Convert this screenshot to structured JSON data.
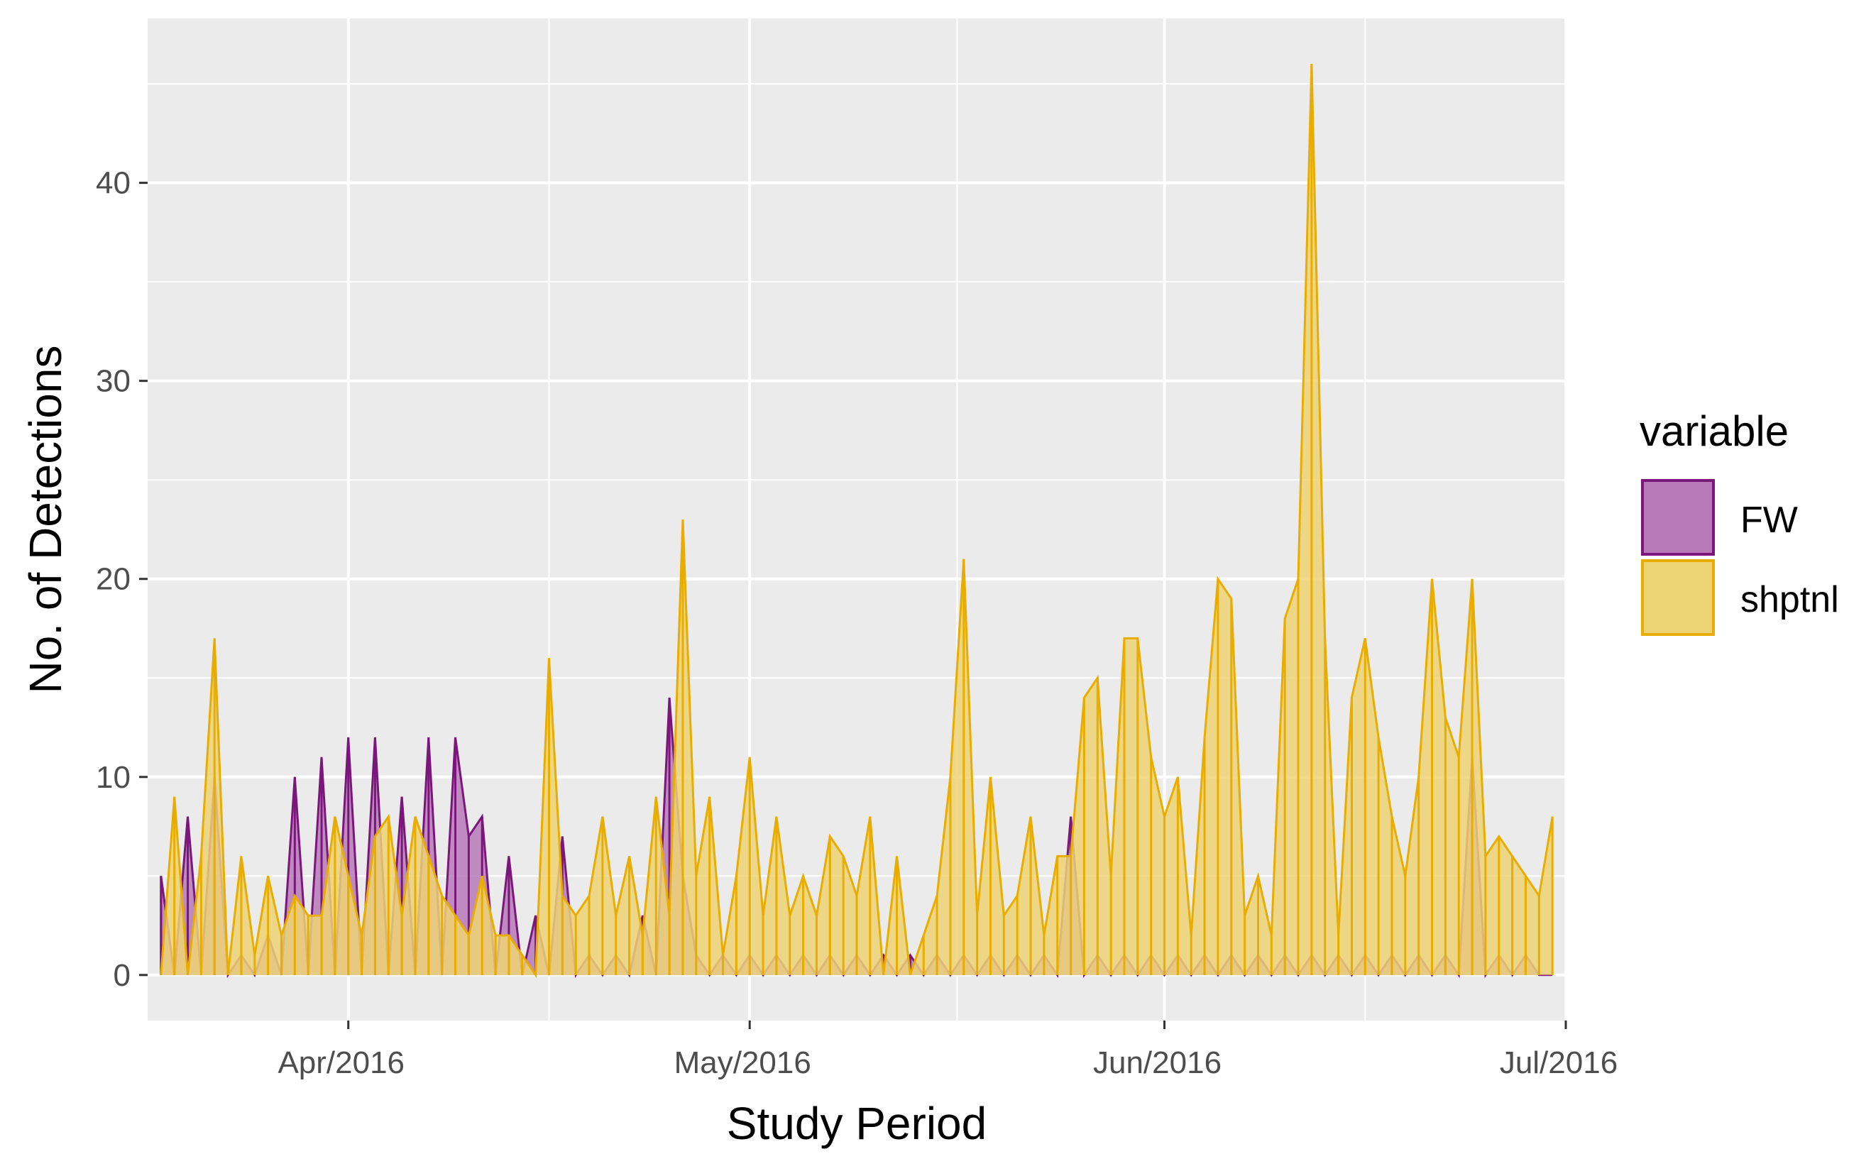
{
  "chart_data": {
    "type": "area",
    "title": "",
    "xlabel": "Study Period",
    "ylabel": "No. of Detections",
    "x_type": "date",
    "xlim": [
      "2016-03-17",
      "2016-07-01"
    ],
    "ylim": [
      -2.3,
      48.3
    ],
    "x_ticks": [
      {
        "date": "2016-04-01",
        "label": "Apr/2016"
      },
      {
        "date": "2016-05-01",
        "label": "May/2016"
      },
      {
        "date": "2016-06-01",
        "label": "Jun/2016"
      },
      {
        "date": "2016-07-01",
        "label": "Jul/2016"
      }
    ],
    "y_ticks": [
      0,
      10,
      20,
      30,
      40
    ],
    "grid": true,
    "legend": {
      "title": "variable",
      "position": "right"
    },
    "series": [
      {
        "name": "FW",
        "fill": "#B779B7",
        "stroke": "#7B177B",
        "points": [
          [
            "2016-03-18",
            5
          ],
          [
            "2016-03-19",
            0
          ],
          [
            "2016-03-20",
            8
          ],
          [
            "2016-03-21",
            0
          ],
          [
            "2016-03-22",
            10
          ],
          [
            "2016-03-23",
            0
          ],
          [
            "2016-03-24",
            1
          ],
          [
            "2016-03-25",
            0
          ],
          [
            "2016-03-26",
            2
          ],
          [
            "2016-03-27",
            0
          ],
          [
            "2016-03-28",
            10
          ],
          [
            "2016-03-29",
            0
          ],
          [
            "2016-03-30",
            11
          ],
          [
            "2016-03-31",
            0
          ],
          [
            "2016-04-01",
            12
          ],
          [
            "2016-04-02",
            0
          ],
          [
            "2016-04-03",
            12
          ],
          [
            "2016-04-04",
            0
          ],
          [
            "2016-04-05",
            9
          ],
          [
            "2016-04-06",
            0
          ],
          [
            "2016-04-07",
            12
          ],
          [
            "2016-04-08",
            0
          ],
          [
            "2016-04-09",
            12
          ],
          [
            "2016-04-10",
            7
          ],
          [
            "2016-04-11",
            8
          ],
          [
            "2016-04-12",
            0
          ],
          [
            "2016-04-13",
            6
          ],
          [
            "2016-04-14",
            0
          ],
          [
            "2016-04-15",
            3
          ],
          [
            "2016-04-16",
            0
          ],
          [
            "2016-04-17",
            7
          ],
          [
            "2016-04-18",
            0
          ],
          [
            "2016-04-19",
            1
          ],
          [
            "2016-04-20",
            0
          ],
          [
            "2016-04-21",
            1
          ],
          [
            "2016-04-22",
            0
          ],
          [
            "2016-04-23",
            3
          ],
          [
            "2016-04-24",
            0
          ],
          [
            "2016-04-25",
            14
          ],
          [
            "2016-04-26",
            5
          ],
          [
            "2016-04-27",
            1
          ],
          [
            "2016-04-28",
            0
          ],
          [
            "2016-04-29",
            1
          ],
          [
            "2016-04-30",
            0
          ],
          [
            "2016-05-01",
            1
          ],
          [
            "2016-05-02",
            0
          ],
          [
            "2016-05-03",
            1
          ],
          [
            "2016-05-04",
            0
          ],
          [
            "2016-05-05",
            1
          ],
          [
            "2016-05-06",
            0
          ],
          [
            "2016-05-07",
            1
          ],
          [
            "2016-05-08",
            0
          ],
          [
            "2016-05-09",
            1
          ],
          [
            "2016-05-10",
            0
          ],
          [
            "2016-05-11",
            1
          ],
          [
            "2016-05-12",
            0
          ],
          [
            "2016-05-13",
            1
          ],
          [
            "2016-05-14",
            0
          ],
          [
            "2016-05-15",
            1
          ],
          [
            "2016-05-16",
            0
          ],
          [
            "2016-05-17",
            1
          ],
          [
            "2016-05-18",
            0
          ],
          [
            "2016-05-19",
            1
          ],
          [
            "2016-05-20",
            0
          ],
          [
            "2016-05-21",
            1
          ],
          [
            "2016-05-22",
            0
          ],
          [
            "2016-05-23",
            1
          ],
          [
            "2016-05-24",
            0
          ],
          [
            "2016-05-25",
            8
          ],
          [
            "2016-05-26",
            0
          ],
          [
            "2016-05-27",
            1
          ],
          [
            "2016-05-28",
            0
          ],
          [
            "2016-05-29",
            1
          ],
          [
            "2016-05-30",
            0
          ],
          [
            "2016-05-31",
            1
          ],
          [
            "2016-06-01",
            0
          ],
          [
            "2016-06-02",
            1
          ],
          [
            "2016-06-03",
            0
          ],
          [
            "2016-06-04",
            1
          ],
          [
            "2016-06-05",
            0
          ],
          [
            "2016-06-06",
            1
          ],
          [
            "2016-06-07",
            0
          ],
          [
            "2016-06-08",
            1
          ],
          [
            "2016-06-09",
            0
          ],
          [
            "2016-06-10",
            1
          ],
          [
            "2016-06-11",
            0
          ],
          [
            "2016-06-12",
            1
          ],
          [
            "2016-06-13",
            0
          ],
          [
            "2016-06-14",
            1
          ],
          [
            "2016-06-15",
            0
          ],
          [
            "2016-06-16",
            1
          ],
          [
            "2016-06-17",
            0
          ],
          [
            "2016-06-18",
            1
          ],
          [
            "2016-06-19",
            0
          ],
          [
            "2016-06-20",
            1
          ],
          [
            "2016-06-21",
            0
          ],
          [
            "2016-06-22",
            1
          ],
          [
            "2016-06-23",
            0
          ],
          [
            "2016-06-24",
            11
          ],
          [
            "2016-06-25",
            0
          ],
          [
            "2016-06-26",
            1
          ],
          [
            "2016-06-27",
            0
          ],
          [
            "2016-06-28",
            1
          ],
          [
            "2016-06-29",
            0
          ],
          [
            "2016-06-30",
            0
          ]
        ]
      },
      {
        "name": "shptnl",
        "fill": "#EDD474",
        "stroke": "#E8AD00",
        "points": [
          [
            "2016-03-18",
            0
          ],
          [
            "2016-03-19",
            9
          ],
          [
            "2016-03-20",
            0
          ],
          [
            "2016-03-21",
            6
          ],
          [
            "2016-03-22",
            17
          ],
          [
            "2016-03-23",
            0
          ],
          [
            "2016-03-24",
            6
          ],
          [
            "2016-03-25",
            1
          ],
          [
            "2016-03-26",
            5
          ],
          [
            "2016-03-27",
            2
          ],
          [
            "2016-03-28",
            4
          ],
          [
            "2016-03-29",
            3
          ],
          [
            "2016-03-30",
            3
          ],
          [
            "2016-03-31",
            8
          ],
          [
            "2016-04-01",
            5
          ],
          [
            "2016-04-02",
            2
          ],
          [
            "2016-04-03",
            7
          ],
          [
            "2016-04-04",
            8
          ],
          [
            "2016-04-05",
            3
          ],
          [
            "2016-04-06",
            8
          ],
          [
            "2016-04-07",
            6
          ],
          [
            "2016-04-08",
            4
          ],
          [
            "2016-04-09",
            3
          ],
          [
            "2016-04-10",
            2
          ],
          [
            "2016-04-11",
            5
          ],
          [
            "2016-04-12",
            2
          ],
          [
            "2016-04-13",
            2
          ],
          [
            "2016-04-14",
            1
          ],
          [
            "2016-04-15",
            0
          ],
          [
            "2016-04-16",
            16
          ],
          [
            "2016-04-17",
            4
          ],
          [
            "2016-04-18",
            3
          ],
          [
            "2016-04-19",
            4
          ],
          [
            "2016-04-20",
            8
          ],
          [
            "2016-04-21",
            3
          ],
          [
            "2016-04-22",
            6
          ],
          [
            "2016-04-23",
            2
          ],
          [
            "2016-04-24",
            9
          ],
          [
            "2016-04-25",
            3
          ],
          [
            "2016-04-26",
            23
          ],
          [
            "2016-04-27",
            5
          ],
          [
            "2016-04-28",
            9
          ],
          [
            "2016-04-29",
            1
          ],
          [
            "2016-04-30",
            5
          ],
          [
            "2016-05-01",
            11
          ],
          [
            "2016-05-02",
            3
          ],
          [
            "2016-05-03",
            8
          ],
          [
            "2016-05-04",
            3
          ],
          [
            "2016-05-05",
            5
          ],
          [
            "2016-05-06",
            3
          ],
          [
            "2016-05-07",
            7
          ],
          [
            "2016-05-08",
            6
          ],
          [
            "2016-05-09",
            4
          ],
          [
            "2016-05-10",
            8
          ],
          [
            "2016-05-11",
            0
          ],
          [
            "2016-05-12",
            6
          ],
          [
            "2016-05-13",
            0
          ],
          [
            "2016-05-14",
            2
          ],
          [
            "2016-05-15",
            4
          ],
          [
            "2016-05-16",
            10
          ],
          [
            "2016-05-17",
            21
          ],
          [
            "2016-05-18",
            3
          ],
          [
            "2016-05-19",
            10
          ],
          [
            "2016-05-20",
            3
          ],
          [
            "2016-05-21",
            4
          ],
          [
            "2016-05-22",
            8
          ],
          [
            "2016-05-23",
            2
          ],
          [
            "2016-05-24",
            6
          ],
          [
            "2016-05-25",
            6
          ],
          [
            "2016-05-26",
            14
          ],
          [
            "2016-05-27",
            15
          ],
          [
            "2016-05-28",
            5
          ],
          [
            "2016-05-29",
            17
          ],
          [
            "2016-05-30",
            17
          ],
          [
            "2016-05-31",
            11
          ],
          [
            "2016-06-01",
            8
          ],
          [
            "2016-06-02",
            10
          ],
          [
            "2016-06-03",
            2
          ],
          [
            "2016-06-04",
            12
          ],
          [
            "2016-06-05",
            20
          ],
          [
            "2016-06-06",
            19
          ],
          [
            "2016-06-07",
            3
          ],
          [
            "2016-06-08",
            5
          ],
          [
            "2016-06-09",
            2
          ],
          [
            "2016-06-10",
            18
          ],
          [
            "2016-06-11",
            20
          ],
          [
            "2016-06-12",
            46
          ],
          [
            "2016-06-13",
            17
          ],
          [
            "2016-06-14",
            2
          ],
          [
            "2016-06-15",
            14
          ],
          [
            "2016-06-16",
            17
          ],
          [
            "2016-06-17",
            12
          ],
          [
            "2016-06-18",
            8
          ],
          [
            "2016-06-19",
            5
          ],
          [
            "2016-06-20",
            10
          ],
          [
            "2016-06-21",
            20
          ],
          [
            "2016-06-22",
            13
          ],
          [
            "2016-06-23",
            11
          ],
          [
            "2016-06-24",
            20
          ],
          [
            "2016-06-25",
            6
          ],
          [
            "2016-06-26",
            7
          ],
          [
            "2016-06-27",
            6
          ],
          [
            "2016-06-28",
            5
          ],
          [
            "2016-06-29",
            4
          ],
          [
            "2016-06-30",
            8
          ]
        ]
      }
    ]
  }
}
